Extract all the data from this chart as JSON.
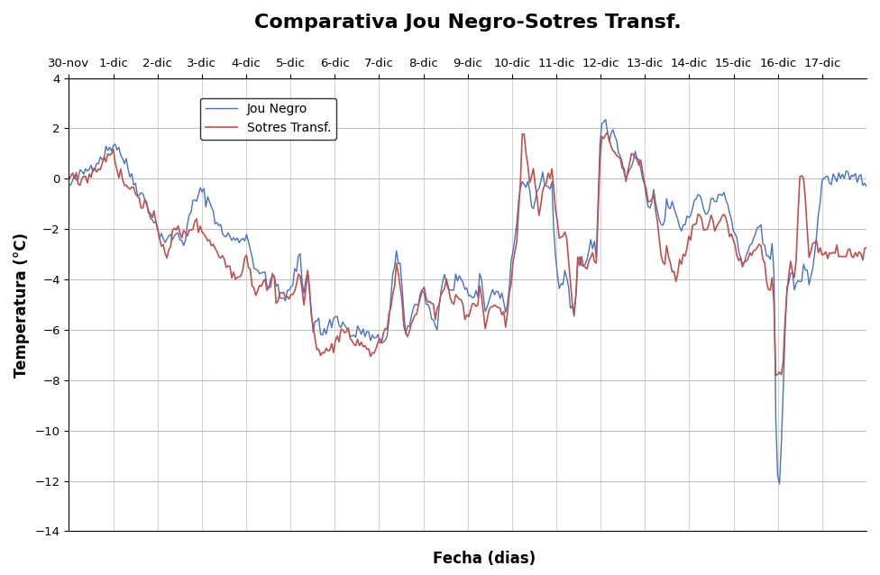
{
  "title": "Comparativa Jou Negro-Sotres Transf.",
  "xlabel": "Fecha (dias)",
  "ylabel": "Temperatura (°C)",
  "ylim": [
    -14,
    4
  ],
  "yticks": [
    -14,
    -12,
    -10,
    -8,
    -6,
    -4,
    -2,
    0,
    2,
    4
  ],
  "xtick_labels": [
    "30-nov",
    "1-dic",
    "2-dic",
    "3-dic",
    "4-dic",
    "5-dic",
    "6-dic",
    "7-dic",
    "8-dic",
    "9-dic",
    "10-dic",
    "11-dic",
    "12-dic",
    "13-dic",
    "14-dic",
    "15-dic",
    "16-dic",
    "17-dic"
  ],
  "xtick_colors": [
    "#7f6000",
    "#1f3864",
    "#1f3864",
    "#1f3864",
    "#1f3864",
    "#1f3864",
    "#1f3864",
    "#1f3864",
    "#1f3864",
    "#1f3864",
    "#1f3864",
    "#1f3864",
    "#1f3864",
    "#1f3864",
    "#1f3864",
    "#1f3864",
    "#1f3864",
    "#1f3864"
  ],
  "jou_color": "#4472C4",
  "sotres_color": "#C0504D",
  "legend_labels": [
    "Jou Negro",
    "Sotres Transf."
  ],
  "background": "#ffffff",
  "grid_color": "#bfbfbf",
  "title_fontsize": 16,
  "axis_label_fontsize": 12,
  "tick_fontsize": 9.5
}
